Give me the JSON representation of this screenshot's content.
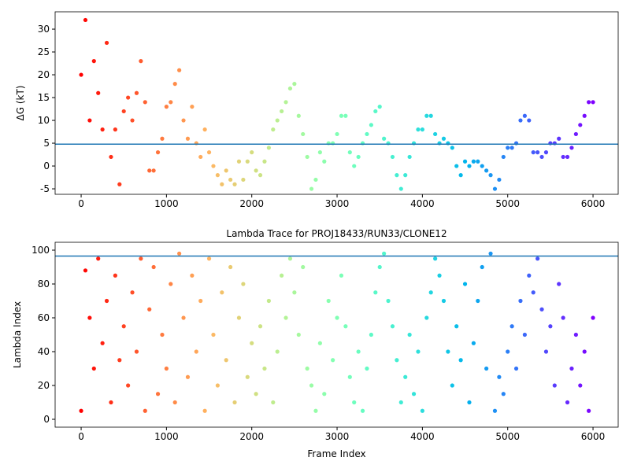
{
  "chart_data": [
    {
      "type": "scatter",
      "ylabel": "ΔG (kT)",
      "colormap": "rainbow_r",
      "hline": 4.8,
      "hline_color": "#1f77b4",
      "xlim": [
        -305,
        6295
      ],
      "xticks": [
        0,
        1000,
        2000,
        3000,
        4000,
        5000,
        6000
      ],
      "ylim": [
        -6.2,
        33.8
      ],
      "yticks": [
        -5,
        0,
        5,
        10,
        15,
        20,
        25,
        30
      ],
      "x": [
        0,
        50,
        100,
        150,
        200,
        250,
        300,
        350,
        400,
        450,
        500,
        550,
        600,
        650,
        700,
        750,
        800,
        850,
        900,
        950,
        1000,
        1050,
        1100,
        1150,
        1200,
        1250,
        1300,
        1350,
        1400,
        1450,
        1500,
        1550,
        1600,
        1650,
        1700,
        1750,
        1800,
        1850,
        1900,
        1950,
        2000,
        2050,
        2100,
        2150,
        2200,
        2250,
        2300,
        2350,
        2400,
        2450,
        2500,
        2550,
        2600,
        2650,
        2700,
        2750,
        2800,
        2850,
        2900,
        2950,
        3000,
        3050,
        3100,
        3150,
        3200,
        3250,
        3300,
        3350,
        3400,
        3450,
        3500,
        3550,
        3600,
        3650,
        3700,
        3750,
        3800,
        3850,
        3900,
        3950,
        4000,
        4050,
        4100,
        4150,
        4200,
        4250,
        4300,
        4350,
        4400,
        4450,
        4500,
        4550,
        4600,
        4650,
        4700,
        4750,
        4800,
        4850,
        4900,
        4950,
        5000,
        5050,
        5100,
        5150,
        5200,
        5250,
        5300,
        5350,
        5400,
        5450,
        5500,
        5550,
        5600,
        5650,
        5700,
        5750,
        5800,
        5850,
        5900,
        5950,
        6000
      ],
      "values": [
        20,
        32,
        10,
        23,
        16,
        8,
        27,
        2,
        8,
        -4,
        12,
        15,
        10,
        16,
        23,
        14,
        -1,
        -1,
        3,
        6,
        13,
        14,
        18,
        21,
        10,
        6,
        13,
        5,
        2,
        8,
        3,
        0,
        -2,
        -4,
        -1,
        -3,
        -4,
        1,
        -3,
        1,
        3,
        -1,
        -2,
        1,
        4,
        8,
        10,
        12,
        14,
        17,
        18,
        11,
        7,
        2,
        -5,
        -3,
        3,
        1,
        5,
        5,
        7,
        11,
        11,
        3,
        0,
        2,
        5,
        7,
        9,
        12,
        13,
        6,
        5,
        2,
        -2,
        -5,
        -2,
        2,
        5,
        8,
        8,
        11,
        11,
        7,
        5,
        6,
        5,
        4,
        0,
        -2,
        1,
        0,
        1,
        1,
        0,
        -1,
        -2,
        -5,
        -3,
        2,
        4,
        4,
        5,
        10,
        11,
        10,
        3,
        3,
        2,
        3,
        5,
        5,
        6,
        2,
        2,
        4,
        7,
        9,
        11,
        14,
        14
      ]
    },
    {
      "type": "scatter",
      "title": "Lambda Trace for PROJ18433/RUN33/CLONE12",
      "xlabel": "Frame Index",
      "ylabel": "Lambda Index",
      "colormap": "rainbow_r",
      "hline": 96.5,
      "hline_color": "#1f77b4",
      "xlim": [
        -305,
        6295
      ],
      "xticks": [
        0,
        1000,
        2000,
        3000,
        4000,
        5000,
        6000
      ],
      "ylim": [
        -4.65,
        104.65
      ],
      "yticks": [
        0,
        20,
        40,
        60,
        80,
        100
      ],
      "x": [
        0,
        50,
        100,
        150,
        200,
        250,
        300,
        350,
        400,
        450,
        500,
        550,
        600,
        650,
        700,
        750,
        800,
        850,
        900,
        950,
        1000,
        1050,
        1100,
        1150,
        1200,
        1250,
        1300,
        1350,
        1400,
        1450,
        1500,
        1550,
        1600,
        1650,
        1700,
        1750,
        1800,
        1850,
        1900,
        1950,
        2000,
        2050,
        2100,
        2150,
        2200,
        2250,
        2300,
        2350,
        2400,
        2450,
        2500,
        2550,
        2600,
        2650,
        2700,
        2750,
        2800,
        2850,
        2900,
        2950,
        3000,
        3050,
        3100,
        3150,
        3200,
        3250,
        3300,
        3350,
        3400,
        3450,
        3500,
        3550,
        3600,
        3650,
        3700,
        3750,
        3800,
        3850,
        3900,
        3950,
        4000,
        4050,
        4100,
        4150,
        4200,
        4250,
        4300,
        4350,
        4400,
        4450,
        4500,
        4550,
        4600,
        4650,
        4700,
        4750,
        4800,
        4850,
        4900,
        4950,
        5000,
        5050,
        5100,
        5150,
        5200,
        5250,
        5300,
        5350,
        5400,
        5450,
        5500,
        5550,
        5600,
        5650,
        5700,
        5750,
        5800,
        5850,
        5900,
        5950,
        6000
      ],
      "values": [
        5,
        88,
        60,
        30,
        95,
        45,
        70,
        10,
        85,
        35,
        55,
        20,
        75,
        40,
        95,
        5,
        65,
        90,
        15,
        50,
        30,
        80,
        10,
        98,
        60,
        25,
        85,
        40,
        70,
        5,
        95,
        50,
        20,
        75,
        35,
        90,
        10,
        60,
        80,
        25,
        45,
        15,
        55,
        30,
        70,
        10,
        40,
        85,
        60,
        95,
        75,
        50,
        90,
        30,
        20,
        5,
        45,
        15,
        70,
        35,
        60,
        85,
        55,
        25,
        10,
        40,
        5,
        30,
        50,
        75,
        90,
        98,
        70,
        55,
        35,
        10,
        25,
        50,
        15,
        40,
        5,
        60,
        75,
        95,
        85,
        70,
        40,
        20,
        55,
        35,
        80,
        10,
        45,
        70,
        90,
        30,
        98,
        5,
        25,
        15,
        40,
        55,
        30,
        70,
        50,
        85,
        75,
        95,
        65,
        40,
        55,
        20,
        80,
        60,
        10,
        30,
        50,
        20,
        40,
        5,
        60
      ]
    }
  ]
}
